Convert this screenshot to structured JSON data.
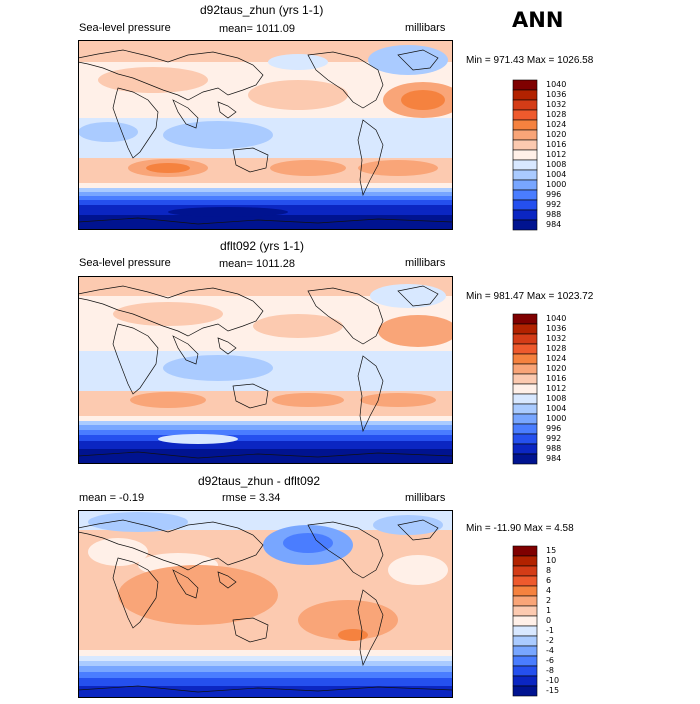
{
  "season": "ANN",
  "panels": [
    {
      "title": "d92taus_zhun (yrs 1-1)",
      "left": "Sea-level pressure",
      "center": "mean= 1011.09",
      "right": "millibars",
      "minmax": "Min = 971.43 Max = 1026.58",
      "levels": [
        "1040",
        "1036",
        "1032",
        "1028",
        "1024",
        "1020",
        "1016",
        "1012",
        "1008",
        "1004",
        "1000",
        "996",
        "992",
        "988",
        "984"
      ]
    },
    {
      "title": "dflt092 (yrs 1-1)",
      "left": "Sea-level pressure",
      "center": "mean= 1011.28",
      "right": "millibars",
      "minmax": "Min = 981.47 Max = 1023.72",
      "levels": [
        "1040",
        "1036",
        "1032",
        "1028",
        "1024",
        "1020",
        "1016",
        "1012",
        "1008",
        "1004",
        "1000",
        "996",
        "992",
        "988",
        "984"
      ]
    },
    {
      "title": "d92taus_zhun - dflt092",
      "left": "mean =   -0.19",
      "center": "rmse =    3.34",
      "right": "millibars",
      "minmax": "Min = -11.90 Max =   4.58",
      "levels": [
        "15",
        "10",
        "8",
        "6",
        "4",
        "2",
        "1",
        "0",
        "-1",
        "-2",
        "-4",
        "-6",
        "-8",
        "-10",
        "-15"
      ]
    }
  ],
  "colors": {
    "seq": [
      "#7f0000",
      "#b22200",
      "#d43c17",
      "#ee5a2d",
      "#f5823f",
      "#f9a578",
      "#fccab0",
      "#fff0e8",
      "#d8e8ff",
      "#aacbff",
      "#78a6ff",
      "#4a7dff",
      "#2550ee",
      "#0b26c2",
      "#001390"
    ],
    "land_outline": "#111111"
  }
}
